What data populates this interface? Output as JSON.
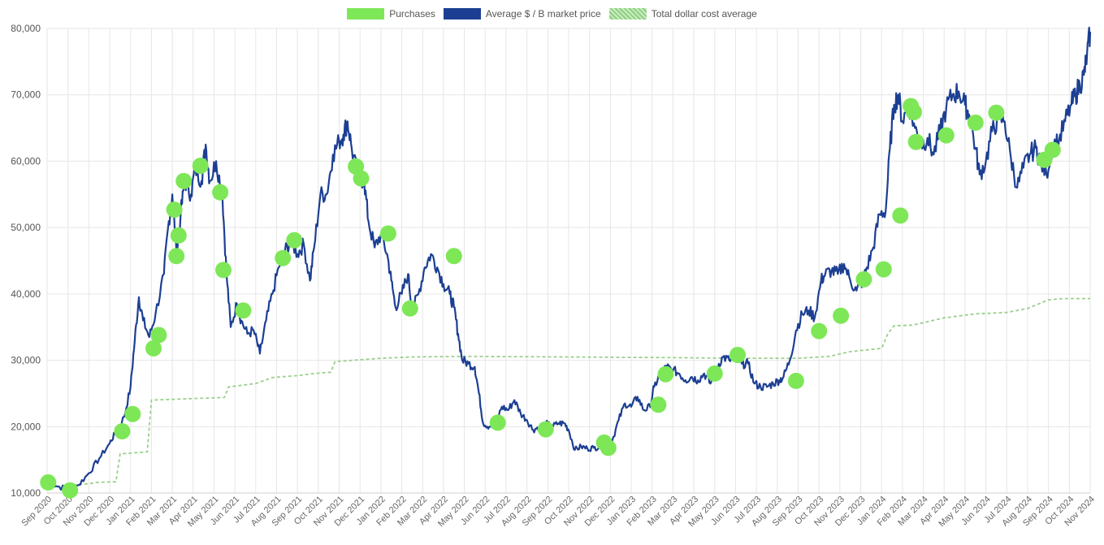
{
  "chart_data": {
    "type": "line",
    "legend": [
      {
        "label": "Purchases",
        "color": "#7ee757",
        "style": "solid"
      },
      {
        "label": "Average $ / B market price",
        "color": "#1c3f93",
        "style": "solid"
      },
      {
        "label": "Total dollar cost average",
        "color": "#a8d89c",
        "style": "hatched"
      }
    ],
    "legend_position": "top-center",
    "grid": true,
    "x_ticks": [
      "Sep 2020",
      "Oct 2020",
      "Nov 2020",
      "Dec 2020",
      "Jan 2021",
      "Feb 2021",
      "Mar 2021",
      "Apr 2021",
      "May 2021",
      "Jun 2021",
      "Jul 2021",
      "Aug 2021",
      "Sep 2021",
      "Oct 2021",
      "Nov 2021",
      "Dec 2021",
      "Jan 2022",
      "Feb 2022",
      "Mar 2022",
      "Apr 2022",
      "May 2022",
      "Jun 2022",
      "Jul 2022",
      "Aug 2022",
      "Sep 2022",
      "Oct 2022",
      "Nov 2022",
      "Dec 2022",
      "Jan 2023",
      "Feb 2023",
      "Mar 2023",
      "Apr 2023",
      "May 2023",
      "Jun 2023",
      "Jul 2023",
      "Aug 2023",
      "Sep 2023",
      "Oct 2023",
      "Nov 2023",
      "Dec 2023",
      "Jan 2024",
      "Feb 2024",
      "Mar 2024",
      "Apr 2024",
      "May 2024",
      "Jun 2024",
      "Jul 2024",
      "Aug 2024",
      "Sep 2024",
      "Oct 2024",
      "Nov 2024"
    ],
    "y_ticks": [
      "10,000",
      "20,000",
      "30,000",
      "40,000",
      "50,000",
      "60,000",
      "70,000",
      "80,000"
    ],
    "ylim": [
      10000,
      80000
    ],
    "series": [
      {
        "name": "Average $ / B market price",
        "color": "#1c3f93",
        "points": [
          [
            0.0,
            11500
          ],
          [
            0.5,
            11000
          ],
          [
            1.0,
            10600
          ],
          [
            1.5,
            11200
          ],
          [
            2.0,
            13000
          ],
          [
            2.5,
            15200
          ],
          [
            3.0,
            17500
          ],
          [
            3.3,
            19200
          ],
          [
            3.7,
            21500
          ],
          [
            4.0,
            26000
          ],
          [
            4.2,
            33000
          ],
          [
            4.4,
            39500
          ],
          [
            4.6,
            36000
          ],
          [
            4.9,
            33500
          ],
          [
            5.2,
            37000
          ],
          [
            5.6,
            43000
          ],
          [
            5.8,
            50000
          ],
          [
            6.0,
            55000
          ],
          [
            6.2,
            46000
          ],
          [
            6.4,
            52000
          ],
          [
            6.6,
            57000
          ],
          [
            6.9,
            55000
          ],
          [
            7.1,
            59000
          ],
          [
            7.4,
            57000
          ],
          [
            7.6,
            62500
          ],
          [
            7.8,
            57000
          ],
          [
            8.1,
            60000
          ],
          [
            8.4,
            55000
          ],
          [
            8.6,
            43000
          ],
          [
            8.8,
            35000
          ],
          [
            9.1,
            38500
          ],
          [
            9.3,
            36000
          ],
          [
            9.6,
            34000
          ],
          [
            9.9,
            34500
          ],
          [
            10.2,
            31000
          ],
          [
            10.5,
            36000
          ],
          [
            10.8,
            40000
          ],
          [
            11.1,
            44000
          ],
          [
            11.4,
            46500
          ],
          [
            11.7,
            48000
          ],
          [
            12.0,
            46000
          ],
          [
            12.3,
            47500
          ],
          [
            12.6,
            42000
          ],
          [
            12.8,
            47000
          ],
          [
            13.1,
            55000
          ],
          [
            13.4,
            55000
          ],
          [
            13.7,
            61000
          ],
          [
            14.0,
            63000
          ],
          [
            14.2,
            64000
          ],
          [
            14.4,
            66000
          ],
          [
            14.6,
            62000
          ],
          [
            14.9,
            57500
          ],
          [
            15.2,
            57000
          ],
          [
            15.4,
            51000
          ],
          [
            15.7,
            47000
          ],
          [
            16.0,
            49000
          ],
          [
            16.3,
            46000
          ],
          [
            16.5,
            42000
          ],
          [
            16.7,
            38000
          ],
          [
            17.0,
            40000
          ],
          [
            17.3,
            43000
          ],
          [
            17.5,
            37500
          ],
          [
            17.8,
            40000
          ],
          [
            18.1,
            44000
          ],
          [
            18.4,
            46000
          ],
          [
            18.7,
            44000
          ],
          [
            19.0,
            41500
          ],
          [
            19.3,
            40000
          ],
          [
            19.5,
            38000
          ],
          [
            19.7,
            34000
          ],
          [
            19.9,
            30000
          ],
          [
            20.2,
            29500
          ],
          [
            20.5,
            29000
          ],
          [
            20.7,
            25000
          ],
          [
            20.9,
            20500
          ],
          [
            21.2,
            20000
          ],
          [
            21.5,
            20500
          ],
          [
            21.8,
            23000
          ],
          [
            22.1,
            22500
          ],
          [
            22.4,
            24000
          ],
          [
            22.7,
            22000
          ],
          [
            23.0,
            21000
          ],
          [
            23.3,
            19500
          ],
          [
            23.6,
            20000
          ],
          [
            23.9,
            20500
          ],
          [
            24.2,
            20000
          ],
          [
            24.5,
            20500
          ],
          [
            24.8,
            20500
          ],
          [
            25.0,
            19500
          ],
          [
            25.3,
            16500
          ],
          [
            25.6,
            17000
          ],
          [
            25.9,
            16700
          ],
          [
            26.2,
            16800
          ],
          [
            26.5,
            17000
          ],
          [
            26.8,
            16600
          ],
          [
            27.1,
            18000
          ],
          [
            27.4,
            21000
          ],
          [
            27.7,
            23500
          ],
          [
            28.0,
            23000
          ],
          [
            28.3,
            24500
          ],
          [
            28.6,
            22500
          ],
          [
            28.9,
            23000
          ],
          [
            29.1,
            26000
          ],
          [
            29.4,
            28000
          ],
          [
            29.7,
            29000
          ],
          [
            30.0,
            28500
          ],
          [
            30.3,
            28000
          ],
          [
            30.6,
            27000
          ],
          [
            30.9,
            27500
          ],
          [
            31.2,
            27000
          ],
          [
            31.5,
            28000
          ],
          [
            31.8,
            26500
          ],
          [
            32.1,
            29000
          ],
          [
            32.4,
            30500
          ],
          [
            32.7,
            30000
          ],
          [
            33.0,
            30500
          ],
          [
            33.3,
            29500
          ],
          [
            33.6,
            29500
          ],
          [
            33.9,
            26500
          ],
          [
            34.2,
            26000
          ],
          [
            34.5,
            26000
          ],
          [
            34.8,
            26500
          ],
          [
            35.1,
            27000
          ],
          [
            35.3,
            27500
          ],
          [
            35.6,
            30000
          ],
          [
            35.9,
            34500
          ],
          [
            36.2,
            37000
          ],
          [
            36.5,
            37500
          ],
          [
            36.8,
            36500
          ],
          [
            37.1,
            42000
          ],
          [
            37.3,
            43000
          ],
          [
            37.6,
            43500
          ],
          [
            37.9,
            43000
          ],
          [
            38.2,
            44500
          ],
          [
            38.5,
            42000
          ],
          [
            38.8,
            40500
          ],
          [
            39.1,
            42000
          ],
          [
            39.3,
            44000
          ],
          [
            39.6,
            47000
          ],
          [
            39.9,
            52000
          ],
          [
            40.2,
            52500
          ],
          [
            40.4,
            62000
          ],
          [
            40.6,
            68500
          ],
          [
            40.8,
            70000
          ],
          [
            41.0,
            66000
          ],
          [
            41.3,
            68500
          ],
          [
            41.6,
            65000
          ],
          [
            41.9,
            62500
          ],
          [
            42.2,
            63500
          ],
          [
            42.5,
            61000
          ],
          [
            42.8,
            64500
          ],
          [
            43.1,
            68000
          ],
          [
            43.4,
            70000
          ],
          [
            43.7,
            70500
          ],
          [
            44.0,
            68500
          ],
          [
            44.2,
            67000
          ],
          [
            44.5,
            62000
          ],
          [
            44.7,
            58000
          ],
          [
            45.0,
            60000
          ],
          [
            45.3,
            64500
          ],
          [
            45.6,
            66500
          ],
          [
            45.9,
            66000
          ],
          [
            46.2,
            60500
          ],
          [
            46.5,
            56000
          ],
          [
            46.8,
            59000
          ],
          [
            47.1,
            61000
          ],
          [
            47.4,
            62000
          ],
          [
            47.6,
            60000
          ],
          [
            47.9,
            58000
          ],
          [
            48.2,
            62500
          ],
          [
            48.5,
            63000
          ],
          [
            48.8,
            66000
          ],
          [
            49.1,
            68500
          ],
          [
            49.3,
            70000
          ],
          [
            49.5,
            71500
          ],
          [
            49.7,
            73000
          ],
          [
            49.85,
            76000
          ],
          [
            50.0,
            79500
          ]
        ]
      },
      {
        "name": "Total dollar cost average",
        "color": "#a8d89c",
        "points": [
          [
            1.0,
            10800
          ],
          [
            1.4,
            11300
          ],
          [
            2.0,
            11400
          ],
          [
            2.4,
            11600
          ],
          [
            3.3,
            11700
          ],
          [
            3.5,
            15900
          ],
          [
            4.8,
            16200
          ],
          [
            5.0,
            24000
          ],
          [
            8.5,
            24400
          ],
          [
            8.7,
            26000
          ],
          [
            10.0,
            26500
          ],
          [
            10.8,
            27400
          ],
          [
            12.0,
            27700
          ],
          [
            12.8,
            28000
          ],
          [
            13.6,
            28200
          ],
          [
            13.8,
            29800
          ],
          [
            16.0,
            30300
          ],
          [
            17.5,
            30500
          ],
          [
            20.0,
            30600
          ],
          [
            30.0,
            30400
          ],
          [
            33.0,
            30300
          ],
          [
            36.0,
            30300
          ],
          [
            37.5,
            30600
          ],
          [
            38.5,
            31300
          ],
          [
            40.0,
            31800
          ],
          [
            40.3,
            34000
          ],
          [
            40.6,
            35200
          ],
          [
            41.5,
            35300
          ],
          [
            43.0,
            36400
          ],
          [
            44.5,
            37000
          ],
          [
            46.0,
            37200
          ],
          [
            47.0,
            37800
          ],
          [
            48.0,
            39100
          ],
          [
            48.7,
            39300
          ],
          [
            50.0,
            39300
          ]
        ]
      },
      {
        "name": "Purchases",
        "color": "#7ee757",
        "points": [
          [
            0.05,
            11600
          ],
          [
            1.1,
            10400
          ],
          [
            3.6,
            19300
          ],
          [
            4.1,
            21900
          ],
          [
            5.1,
            31800
          ],
          [
            5.35,
            33800
          ],
          [
            6.1,
            52700
          ],
          [
            6.3,
            48800
          ],
          [
            6.2,
            45700
          ],
          [
            6.55,
            57000
          ],
          [
            7.35,
            59300
          ],
          [
            8.3,
            55300
          ],
          [
            8.45,
            43600
          ],
          [
            9.4,
            37500
          ],
          [
            11.3,
            45400
          ],
          [
            11.85,
            48100
          ],
          [
            14.8,
            59200
          ],
          [
            15.05,
            57400
          ],
          [
            16.35,
            49100
          ],
          [
            17.4,
            37800
          ],
          [
            19.5,
            45700
          ],
          [
            21.6,
            20600
          ],
          [
            23.9,
            19600
          ],
          [
            26.7,
            17600
          ],
          [
            26.9,
            16800
          ],
          [
            29.3,
            23300
          ],
          [
            29.65,
            27900
          ],
          [
            32.0,
            28000
          ],
          [
            33.1,
            30800
          ],
          [
            35.9,
            26900
          ],
          [
            37.0,
            34400
          ],
          [
            38.05,
            36700
          ],
          [
            39.15,
            42200
          ],
          [
            40.1,
            43700
          ],
          [
            40.9,
            51800
          ],
          [
            41.4,
            68300
          ],
          [
            41.55,
            67400
          ],
          [
            41.65,
            62900
          ],
          [
            43.1,
            63900
          ],
          [
            44.5,
            65800
          ],
          [
            45.5,
            67300
          ],
          [
            47.8,
            60200
          ],
          [
            48.2,
            61700
          ]
        ]
      }
    ]
  }
}
